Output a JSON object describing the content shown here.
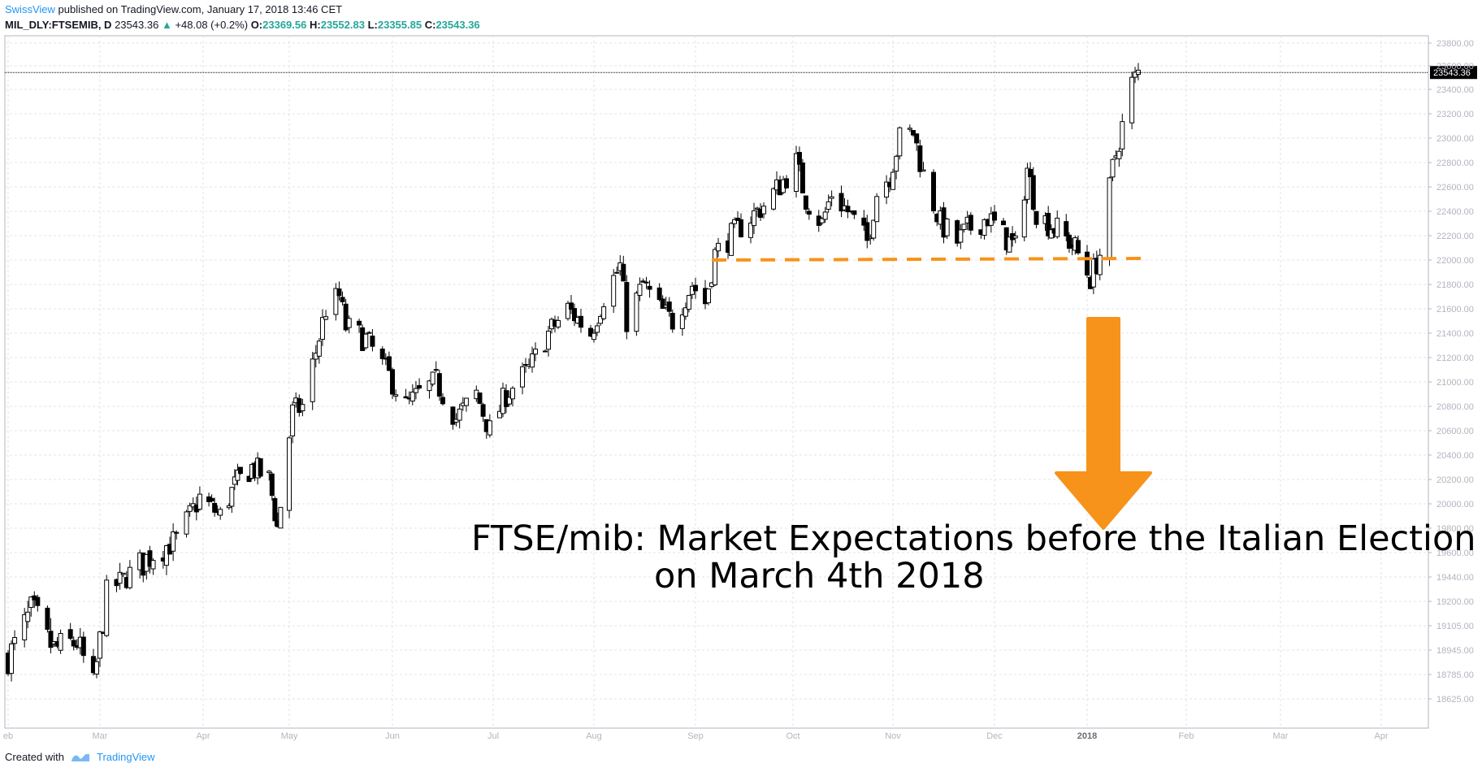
{
  "header": {
    "author": "SwissView",
    "published": "published on TradingView.com, January 17, 2018 13:46 CET"
  },
  "legend": {
    "symbol": "MIL_DLY:FTSEMIB, D",
    "last": "23543.36",
    "arrow": "▲",
    "change": "+48.08 (+0.2%)",
    "o_label": "O:",
    "o": "23369.56",
    "h_label": "H:",
    "h": "23552.83",
    "l_label": "L:",
    "l": "23355.85",
    "c_label": "C:",
    "c": "23543.36"
  },
  "footer": {
    "created_with": "Created with",
    "brand": "TradingView"
  },
  "annotation": {
    "line1": "FTSE/mib: Market Expectations before the Italian Election",
    "line2": "on March 4th 2018"
  },
  "colors": {
    "accent": "#2196f3",
    "up": "#26a69a",
    "support_line": "#f7931a",
    "arrow": "#f7931a",
    "last_price_bg": "#000000"
  },
  "chart_data": {
    "type": "candlestick",
    "symbol": "MIL_DLY:FTSEMIB",
    "interval": "D",
    "last_price": 23543.36,
    "support_level": 22000,
    "grid": true,
    "y_ticks": [
      23800,
      23600,
      23400,
      23200,
      23000,
      22800,
      22600,
      22400,
      22200,
      22000,
      21800,
      21600,
      21400,
      21200,
      21000,
      20800,
      20600,
      20400,
      20200,
      20000,
      19800,
      19600,
      19440,
      19200,
      19105,
      18945,
      18785,
      18625
    ],
    "y_tick_labels": [
      "23800.00",
      "23600.00",
      "23400.00",
      "23200.00",
      "23000.00",
      "22800.00",
      "22600.00",
      "22400.00",
      "22200.00",
      "22000.00",
      "21800.00",
      "21600.00",
      "21400.00",
      "21200.00",
      "21000.00",
      "20800.00",
      "20600.00",
      "20400.00",
      "20200.00",
      "20000.00",
      "19800.00",
      "19600.00",
      "19440.00",
      "19200.00",
      "19105.00",
      "18945.00",
      "18785.00",
      "18625.00"
    ],
    "x_labels": [
      "eb",
      "Mar",
      "Apr",
      "May",
      "Jun",
      "Jul",
      "Aug",
      "Sep",
      "Oct",
      "Nov",
      "Dec",
      "2018",
      "Feb",
      "Mar",
      "Apr"
    ],
    "x_label_dates": [
      "2017-02-01",
      "2017-03-01",
      "2017-04-01",
      "2017-05-01",
      "2017-06-01",
      "2017-07-01",
      "2017-08-01",
      "2017-09-01",
      "2017-10-01",
      "2017-11-01",
      "2017-12-01",
      "2018-01-01",
      "2018-02-01",
      "2018-03-01",
      "2018-04-01"
    ],
    "close_path": [
      [
        "2017-02-01",
        18900
      ],
      [
        "2017-02-08",
        19150
      ],
      [
        "2017-02-15",
        18950
      ],
      [
        "2017-02-22",
        19000
      ],
      [
        "2017-02-27",
        18700
      ],
      [
        "2017-03-03",
        19300
      ],
      [
        "2017-03-10",
        19450
      ],
      [
        "2017-03-17",
        19600
      ],
      [
        "2017-03-24",
        19700
      ],
      [
        "2017-03-31",
        20050
      ],
      [
        "2017-04-07",
        19900
      ],
      [
        "2017-04-12",
        20150
      ],
      [
        "2017-04-18",
        20300
      ],
      [
        "2017-04-24",
        20200
      ],
      [
        "2017-04-27",
        19800
      ],
      [
        "2017-05-02",
        20750
      ],
      [
        "2017-05-05",
        20800
      ],
      [
        "2017-05-09",
        21250
      ],
      [
        "2017-05-12",
        21600
      ],
      [
        "2017-05-16",
        21700
      ],
      [
        "2017-05-18",
        21450
      ],
      [
        "2017-05-24",
        21350
      ],
      [
        "2017-05-31",
        21050
      ],
      [
        "2017-06-05",
        20800
      ],
      [
        "2017-06-09",
        20900
      ],
      [
        "2017-06-14",
        21000
      ],
      [
        "2017-06-20",
        20700
      ],
      [
        "2017-06-26",
        20900
      ],
      [
        "2017-06-30",
        20600
      ],
      [
        "2017-07-05",
        20900
      ],
      [
        "2017-07-12",
        21100
      ],
      [
        "2017-07-18",
        21400
      ],
      [
        "2017-07-24",
        21600
      ],
      [
        "2017-07-31",
        21400
      ],
      [
        "2017-08-04",
        21700
      ],
      [
        "2017-08-09",
        21950
      ],
      [
        "2017-08-11",
        21500
      ],
      [
        "2017-08-16",
        21800
      ],
      [
        "2017-08-21",
        21600
      ],
      [
        "2017-08-25",
        21500
      ],
      [
        "2017-08-31",
        21800
      ],
      [
        "2017-09-04",
        21650
      ],
      [
        "2017-09-07",
        22050
      ],
      [
        "2017-09-12",
        22200
      ],
      [
        "2017-09-18",
        22350
      ],
      [
        "2017-09-22",
        22450
      ],
      [
        "2017-09-28",
        22650
      ],
      [
        "2017-10-02",
        22800
      ],
      [
        "2017-10-05",
        22500
      ],
      [
        "2017-10-10",
        22300
      ],
      [
        "2017-10-13",
        22550
      ],
      [
        "2017-10-18",
        22400
      ],
      [
        "2017-10-24",
        22150
      ],
      [
        "2017-10-27",
        22550
      ],
      [
        "2017-10-31",
        22700
      ],
      [
        "2017-11-03",
        23000
      ],
      [
        "2017-11-07",
        23050
      ],
      [
        "2017-11-10",
        22700
      ],
      [
        "2017-11-15",
        22300
      ],
      [
        "2017-11-20",
        22150
      ],
      [
        "2017-11-23",
        22250
      ],
      [
        "2017-11-29",
        22350
      ],
      [
        "2017-12-04",
        22200
      ],
      [
        "2017-12-08",
        22100
      ],
      [
        "2017-12-12",
        22750
      ],
      [
        "2017-12-15",
        22400
      ],
      [
        "2017-12-19",
        22300
      ],
      [
        "2017-12-22",
        22250
      ],
      [
        "2017-12-28",
        22100
      ],
      [
        "2018-01-02",
        21850
      ],
      [
        "2018-01-05",
        22050
      ],
      [
        "2018-01-09",
        22750
      ],
      [
        "2018-01-12",
        23100
      ],
      [
        "2018-01-15",
        23450
      ],
      [
        "2018-01-17",
        23543.36
      ]
    ]
  }
}
